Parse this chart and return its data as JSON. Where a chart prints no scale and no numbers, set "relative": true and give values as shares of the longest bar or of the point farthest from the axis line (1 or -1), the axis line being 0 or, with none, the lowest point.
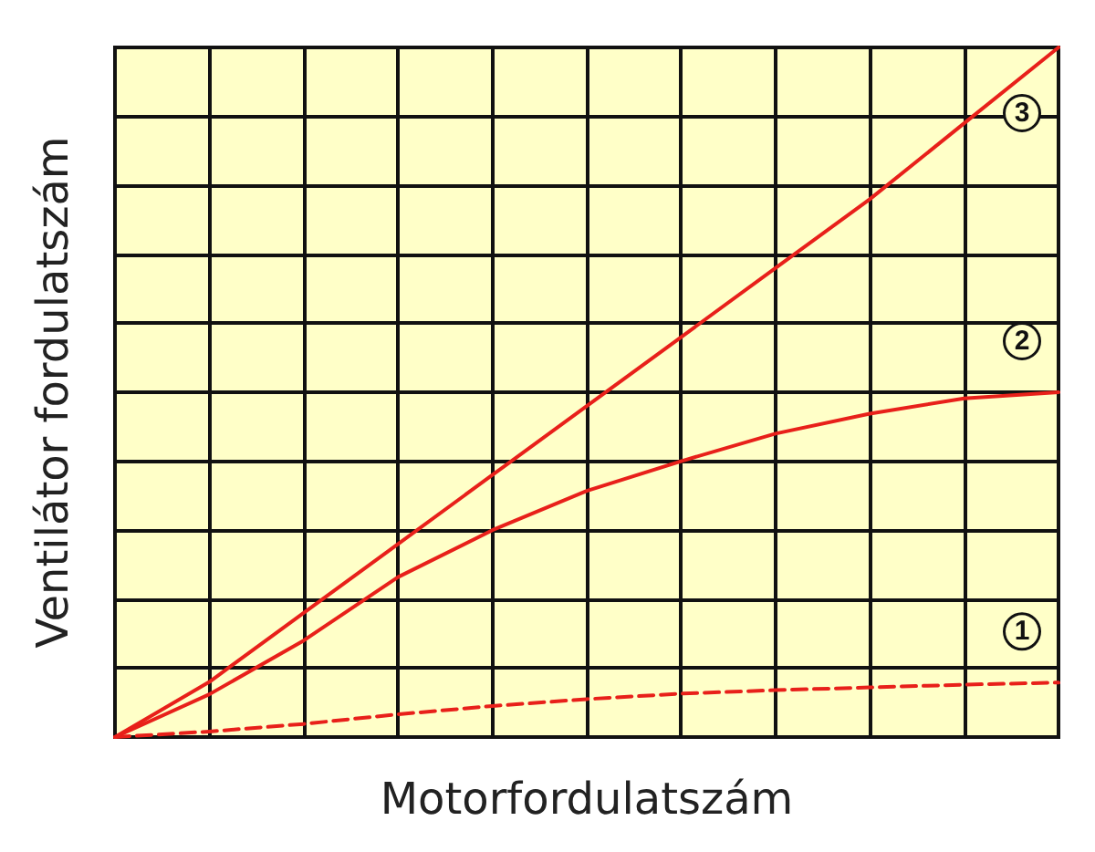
{
  "chart_data": {
    "type": "line",
    "xlabel": "Motorfordulatszám",
    "ylabel": "Ventilátor fordulatszám",
    "relative": true,
    "grid": true,
    "legend": false,
    "marker": "none",
    "categories": [
      null,
      null,
      null,
      null,
      null,
      null,
      null,
      null,
      null,
      null,
      null
    ],
    "series": [
      {
        "name": "1",
        "color": "#e8201a",
        "line_style": "dashed",
        "values": [
          0,
          0.008,
          0.019,
          0.033,
          0.045,
          0.055,
          0.063,
          0.068,
          0.072,
          0.076,
          0.079
        ]
      },
      {
        "name": "2",
        "color": "#e8201a",
        "line_style": "solid",
        "values": [
          0,
          0.062,
          0.14,
          0.232,
          0.3,
          0.357,
          0.4,
          0.44,
          0.469,
          0.491,
          0.5
        ]
      },
      {
        "name": "3",
        "color": "#e8201a",
        "line_style": "solid",
        "values": [
          0,
          0.08,
          0.18,
          0.28,
          0.38,
          0.48,
          0.58,
          0.68,
          0.78,
          0.89,
          1
        ]
      }
    ]
  }
}
